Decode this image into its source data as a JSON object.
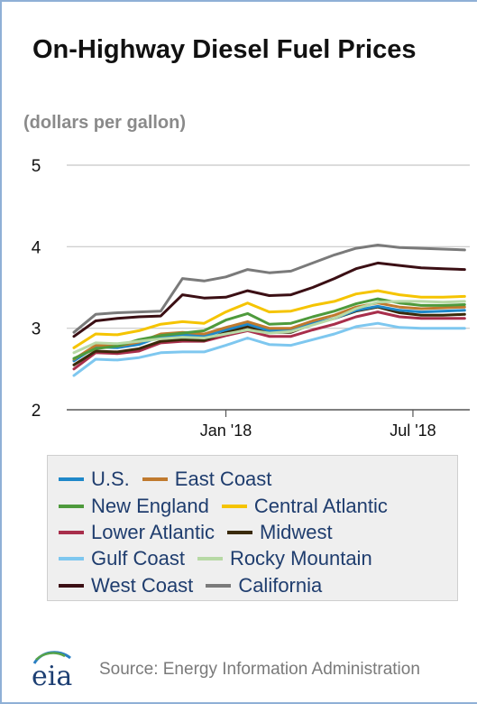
{
  "title": "On-Highway Diesel Fuel Prices",
  "subtitle": "(dollars per gallon)",
  "source": "Source: Energy Information Administration",
  "logo_text": "eia",
  "chart_data": {
    "type": "line",
    "y_ticks": [
      "5",
      "4",
      "3",
      "2"
    ],
    "x_ticks": [
      "Jan '18",
      "Jul '18"
    ],
    "ylim": [
      2,
      5
    ],
    "grid": true,
    "legend_position": "bottom",
    "x": [
      "2017-08-07",
      "2017-08-28",
      "2017-09-18",
      "2017-10-09",
      "2017-10-30",
      "2017-11-20",
      "2017-12-11",
      "2018-01-01",
      "2018-01-22",
      "2018-02-12",
      "2018-03-05",
      "2018-03-26",
      "2018-04-16",
      "2018-05-07",
      "2018-05-28",
      "2018-06-18",
      "2018-07-09",
      "2018-07-30",
      "2018-08-20"
    ],
    "series": [
      {
        "name": "U.S.",
        "color": "#1f88c9",
        "values": [
          2.6,
          2.77,
          2.76,
          2.8,
          2.9,
          2.92,
          2.9,
          2.98,
          3.05,
          2.97,
          2.97,
          3.06,
          3.12,
          3.22,
          3.27,
          3.22,
          3.2,
          3.21,
          3.22
        ]
      },
      {
        "name": "East Coast",
        "color": "#c07a2e",
        "values": [
          2.62,
          2.79,
          2.78,
          2.83,
          2.93,
          2.95,
          2.93,
          3.01,
          3.08,
          3.0,
          3.0,
          3.09,
          3.16,
          3.26,
          3.31,
          3.26,
          3.24,
          3.25,
          3.26
        ]
      },
      {
        "name": "New England",
        "color": "#4e9a3c",
        "values": [
          2.63,
          2.75,
          2.78,
          2.86,
          2.91,
          2.94,
          2.97,
          3.1,
          3.18,
          3.05,
          3.06,
          3.14,
          3.21,
          3.3,
          3.36,
          3.31,
          3.28,
          3.28,
          3.29
        ]
      },
      {
        "name": "Central Atlantic",
        "color": "#f5c400",
        "values": [
          2.76,
          2.93,
          2.92,
          2.97,
          3.05,
          3.08,
          3.06,
          3.2,
          3.31,
          3.2,
          3.21,
          3.28,
          3.33,
          3.42,
          3.46,
          3.41,
          3.38,
          3.38,
          3.39
        ]
      },
      {
        "name": "Lower Atlantic",
        "color": "#a82e4b",
        "values": [
          2.5,
          2.7,
          2.69,
          2.72,
          2.82,
          2.84,
          2.84,
          2.91,
          2.97,
          2.9,
          2.9,
          2.98,
          3.05,
          3.14,
          3.2,
          3.14,
          3.12,
          3.12,
          3.12
        ]
      },
      {
        "name": "Midwest",
        "color": "#3a2a0a",
        "values": [
          2.55,
          2.72,
          2.71,
          2.75,
          2.84,
          2.86,
          2.85,
          2.95,
          3.02,
          2.95,
          2.95,
          3.05,
          3.12,
          3.21,
          3.26,
          3.19,
          3.16,
          3.16,
          3.17
        ]
      },
      {
        "name": "Gulf Coast",
        "color": "#7ec7ef",
        "values": [
          2.42,
          2.62,
          2.61,
          2.64,
          2.7,
          2.71,
          2.71,
          2.79,
          2.88,
          2.8,
          2.79,
          2.86,
          2.93,
          3.02,
          3.06,
          3.01,
          3.0,
          3.0,
          3.0
        ]
      },
      {
        "name": "Rocky Mountain",
        "color": "#b7d9a5",
        "values": [
          2.7,
          2.82,
          2.81,
          2.84,
          2.87,
          2.89,
          2.88,
          2.93,
          2.98,
          2.94,
          2.96,
          3.04,
          3.12,
          3.24,
          3.32,
          3.33,
          3.33,
          3.32,
          3.33
        ]
      },
      {
        "name": "West Coast",
        "color": "#3b0f14",
        "values": [
          2.9,
          3.09,
          3.12,
          3.14,
          3.15,
          3.41,
          3.37,
          3.38,
          3.46,
          3.4,
          3.41,
          3.5,
          3.61,
          3.73,
          3.8,
          3.77,
          3.74,
          3.73,
          3.72
        ]
      },
      {
        "name": "California",
        "color": "#7a7a7a",
        "values": [
          2.95,
          3.17,
          3.19,
          3.2,
          3.21,
          3.61,
          3.58,
          3.63,
          3.72,
          3.68,
          3.7,
          3.8,
          3.9,
          3.98,
          4.02,
          3.99,
          3.98,
          3.97,
          3.96
        ]
      }
    ]
  }
}
